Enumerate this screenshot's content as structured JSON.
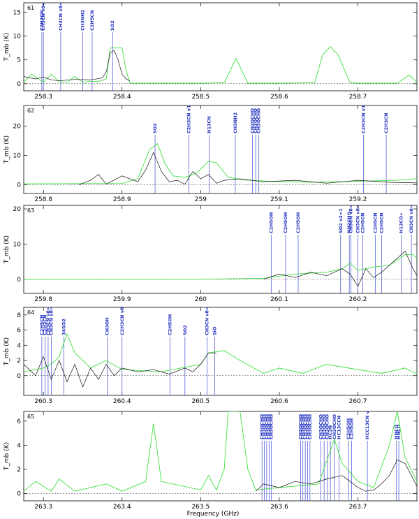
{
  "figure": {
    "xlabel": "Frequency (GHz)",
    "ylabel": "T_mb (K)"
  },
  "chart_data": [
    {
      "type": "line",
      "panel": "61",
      "xlim": [
        258.275,
        258.775
      ],
      "ylim": [
        -1.5,
        17
      ],
      "xticks": [
        258.3,
        258.4,
        258.5,
        258.6,
        258.7
      ],
      "yticks": [
        0,
        5,
        10,
        15
      ],
      "observed": {
        "x": [
          258.275,
          258.29,
          258.3,
          258.31,
          258.32,
          258.34,
          258.36,
          258.375,
          258.38,
          258.385,
          258.39,
          258.395,
          258.4,
          258.405,
          258.41
        ],
        "y": [
          1.5,
          1.0,
          1.4,
          0.8,
          0.6,
          0.9,
          0.8,
          1.2,
          2.5,
          6.5,
          7.0,
          5.0,
          2.0,
          1.0,
          0.6
        ]
      },
      "model": {
        "x": [
          258.275,
          258.285,
          258.3,
          258.31,
          258.32,
          258.33,
          258.34,
          258.35,
          258.36,
          258.37,
          258.38,
          258.385,
          258.4,
          258.405,
          258.41,
          258.5,
          258.53,
          258.545,
          258.56,
          258.6,
          258.645,
          258.655,
          258.665,
          258.675,
          258.69,
          258.7,
          258.75,
          258.765,
          258.775
        ],
        "y": [
          0.3,
          2.0,
          0.3,
          2.0,
          0.4,
          0.3,
          1.5,
          0.3,
          0.5,
          0.5,
          1.0,
          7.5,
          7.5,
          3.0,
          0.1,
          0.1,
          0.2,
          5.3,
          0.1,
          0.1,
          0.2,
          6.0,
          7.8,
          6.0,
          0.2,
          0.1,
          0.1,
          1.8,
          0.3
        ]
      },
      "lines": [
        {
          "freq": 258.298,
          "label": "C2H3CN"
        },
        {
          "freq": 258.3,
          "label": "CH3CN v8=1"
        },
        {
          "freq": 258.322,
          "label": "CH3CN v8=1"
        },
        {
          "freq": 258.35,
          "label": "CH3NH2"
        },
        {
          "freq": 258.362,
          "label": "C2H5CN"
        },
        {
          "freq": 258.388,
          "label": "SO2"
        }
      ]
    },
    {
      "type": "line",
      "panel": "62",
      "xlim": [
        258.775,
        259.275
      ],
      "ylim": [
        -3,
        27
      ],
      "xticks": [
        258.8,
        258.9,
        259,
        259.1,
        259.2
      ],
      "yticks": [
        0,
        10,
        20
      ],
      "observed": {
        "x": [
          258.845,
          258.86,
          258.87,
          258.88,
          258.9,
          258.92,
          258.93,
          258.94,
          258.95,
          258.96,
          258.97,
          258.98,
          258.99,
          259.0,
          259.01,
          259.02,
          259.03,
          259.05,
          259.08,
          259.12,
          259.16,
          259.2,
          259.24,
          259.275
        ],
        "y": [
          0.0,
          1.5,
          3.5,
          0.2,
          3.0,
          1.0,
          5.0,
          11.0,
          4.5,
          1.0,
          1.5,
          0.2,
          4.5,
          2.0,
          3.5,
          0.5,
          1.5,
          2.0,
          1.0,
          1.5,
          0.5,
          1.5,
          0.8,
          0.6
        ]
      },
      "model": {
        "x": [
          258.775,
          258.9,
          258.92,
          258.935,
          258.945,
          258.955,
          258.965,
          258.98,
          258.995,
          259.01,
          259.02,
          259.035,
          259.06,
          259.1,
          259.15,
          259.2,
          259.25,
          259.275
        ],
        "y": [
          0.3,
          0.4,
          2.0,
          12.0,
          14.0,
          7.0,
          3.0,
          2.5,
          4.0,
          8.0,
          7.5,
          2.5,
          1.5,
          1.0,
          0.8,
          1.2,
          1.5,
          2.0
        ]
      },
      "lines": [
        {
          "freq": 258.942,
          "label": "SO2"
        },
        {
          "freq": 258.985,
          "label": "C2H3CN v11=1"
        },
        {
          "freq": 259.011,
          "label": "H13CN"
        },
        {
          "freq": 259.044,
          "label": "CH3NH2"
        },
        {
          "freq": 259.066,
          "label": "CH3OCHO"
        },
        {
          "freq": 259.07,
          "label": "CH3OCHO"
        },
        {
          "freq": 259.074,
          "label": "CH3OCHO"
        },
        {
          "freq": 259.207,
          "label": "C2H3CN v11=1"
        },
        {
          "freq": 259.236,
          "label": "C2H3CN"
        }
      ]
    },
    {
      "type": "line",
      "panel": "63",
      "xlim": [
        259.775,
        260.275
      ],
      "ylim": [
        -4,
        21
      ],
      "xticks": [
        259.8,
        259.9,
        260,
        260.1,
        260.2
      ],
      "yticks": [
        0,
        10,
        20
      ],
      "observed": {
        "x": [
          260.08,
          260.1,
          260.12,
          260.14,
          260.16,
          260.18,
          260.19,
          260.2,
          260.21,
          260.22,
          260.23,
          260.24,
          260.25,
          260.26,
          260.27,
          260.275
        ],
        "y": [
          0.0,
          1.5,
          0.5,
          2.0,
          1.0,
          3.0,
          1.5,
          -2.0,
          3.0,
          0.5,
          2.0,
          4.0,
          6.0,
          8.0,
          3.0,
          1.0
        ]
      },
      "model": {
        "x": [
          259.775,
          260.0,
          260.08,
          260.12,
          260.16,
          260.18,
          260.19,
          260.2,
          260.22,
          260.24,
          260.25,
          260.26,
          260.27,
          260.275
        ],
        "y": [
          0.0,
          0.0,
          0.3,
          1.5,
          2.0,
          3.0,
          4.5,
          2.5,
          3.5,
          4.0,
          5.5,
          7.0,
          7.0,
          6.0
        ]
      },
      "lines": [
        {
          "freq": 260.09,
          "label": "C2H5OH"
        },
        {
          "freq": 260.108,
          "label": "C2H5OH"
        },
        {
          "freq": 260.124,
          "label": "C2H5OH"
        },
        {
          "freq": 260.178,
          "label": "SO2 v2=1"
        },
        {
          "freq": 260.189,
          "label": "NH2CHO"
        },
        {
          "freq": 260.191,
          "label": "CH3CN v8=1"
        },
        {
          "freq": 260.2,
          "label": "CH3CN v8=1"
        },
        {
          "freq": 260.206,
          "label": "C2H5CN"
        },
        {
          "freq": 260.222,
          "label": "C2H5CN"
        },
        {
          "freq": 260.23,
          "label": "C2H5CN"
        },
        {
          "freq": 260.255,
          "label": "H13CO+"
        },
        {
          "freq": 260.268,
          "label": "CH3CN v8=1"
        }
      ]
    },
    {
      "type": "line",
      "panel": "64",
      "xlim": [
        260.275,
        260.775
      ],
      "ylim": [
        -2.6,
        9
      ],
      "xticks": [
        260.3,
        260.4,
        260.5,
        260.6,
        260.7
      ],
      "yticks": [
        0,
        2,
        4,
        6,
        8
      ],
      "observed": {
        "x": [
          260.275,
          260.29,
          260.3,
          260.31,
          260.32,
          260.33,
          260.34,
          260.35,
          260.36,
          260.37,
          260.38,
          260.39,
          260.4,
          260.42,
          260.44,
          260.46,
          260.48,
          260.49,
          260.5,
          260.51,
          260.52
        ],
        "y": [
          1.5,
          0.0,
          2.5,
          -0.5,
          2.0,
          -0.8,
          1.5,
          -1.5,
          1.0,
          -0.5,
          1.5,
          0.0,
          1.0,
          0.5,
          0.8,
          0.2,
          1.0,
          0.5,
          1.5,
          3.0,
          3.0
        ]
      },
      "model": {
        "x": [
          260.275,
          260.3,
          260.31,
          260.32,
          260.33,
          260.34,
          260.36,
          260.38,
          260.4,
          260.45,
          260.5,
          260.51,
          260.53,
          260.55,
          260.58,
          260.6,
          260.63,
          260.66,
          260.7,
          260.73,
          260.76,
          260.775
        ],
        "y": [
          0.5,
          1.0,
          1.5,
          2.5,
          5.5,
          3.0,
          1.0,
          2.0,
          0.8,
          0.5,
          1.5,
          3.0,
          3.3,
          2.0,
          0.3,
          1.0,
          0.3,
          1.5,
          0.8,
          0.3,
          1.0,
          0.2
        ]
      },
      "lines": [
        {
          "freq": 260.298,
          "label": "C2H5CN"
        },
        {
          "freq": 260.302,
          "label": "C2H3CN"
        },
        {
          "freq": 260.306,
          "label": "CH3CN v8=1"
        },
        {
          "freq": 260.31,
          "label": "CH3CN v8=1"
        },
        {
          "freq": 260.326,
          "label": "34SO2"
        },
        {
          "freq": 260.381,
          "label": "CH3OH"
        },
        {
          "freq": 260.4,
          "label": "C2H3CN v8=1"
        },
        {
          "freq": 260.461,
          "label": "C2H5OH"
        },
        {
          "freq": 260.48,
          "label": "SO2"
        },
        {
          "freq": 260.508,
          "label": "CH3CN v8=1"
        },
        {
          "freq": 260.518,
          "label": "SiO"
        }
      ]
    },
    {
      "type": "line",
      "panel": "65",
      "xlim": [
        263.275,
        263.775
      ],
      "ylim": [
        -0.6,
        6.8
      ],
      "xticks": [
        263.3,
        263.4,
        263.5,
        263.6,
        263.7
      ],
      "yticks": [
        0,
        2,
        4,
        6
      ],
      "observed": {
        "x": [
          263.57,
          263.58,
          263.6,
          263.62,
          263.64,
          263.66,
          263.68,
          263.69,
          263.7,
          263.71,
          263.72,
          263.73,
          263.74,
          263.75,
          263.76,
          263.775
        ],
        "y": [
          0.2,
          0.8,
          0.5,
          1.0,
          0.8,
          1.2,
          1.5,
          1.0,
          0.5,
          0.2,
          0.3,
          0.8,
          1.5,
          2.8,
          2.5,
          0.6
        ]
      },
      "model": {
        "x": [
          263.275,
          263.29,
          263.31,
          263.32,
          263.34,
          263.38,
          263.4,
          263.43,
          263.44,
          263.45,
          263.5,
          263.51,
          263.52,
          263.53,
          263.535,
          263.55,
          263.56,
          263.57,
          263.6,
          263.65,
          263.67,
          263.68,
          263.7,
          263.72,
          263.74,
          263.75,
          263.76,
          263.775
        ],
        "y": [
          0.2,
          1.0,
          0.2,
          1.2,
          0.2,
          0.8,
          0.2,
          1.0,
          5.8,
          1.0,
          0.3,
          1.5,
          0.3,
          2.0,
          6.8,
          6.8,
          2.0,
          0.3,
          0.5,
          0.8,
          4.5,
          2.5,
          1.0,
          0.5,
          4.0,
          6.8,
          3.0,
          1.0
        ]
      },
      "lines": [
        {
          "freq": 263.578,
          "label": "CH3OCHO"
        },
        {
          "freq": 263.581,
          "label": "CH3OCHO"
        },
        {
          "freq": 263.584,
          "label": "CH3OCHO"
        },
        {
          "freq": 263.587,
          "label": "CH3OCHO"
        },
        {
          "freq": 263.59,
          "label": "CH3OCHO"
        },
        {
          "freq": 263.627,
          "label": "CH3OCHO"
        },
        {
          "freq": 263.63,
          "label": "CH3OCHO"
        },
        {
          "freq": 263.633,
          "label": "CH3OCHO"
        },
        {
          "freq": 263.636,
          "label": "CH3OCHO"
        },
        {
          "freq": 263.639,
          "label": "CH3OCHO"
        },
        {
          "freq": 263.653,
          "label": "CH3OCHO"
        },
        {
          "freq": 263.657,
          "label": "CH3OCHO"
        },
        {
          "freq": 263.661,
          "label": "CH3OCHO"
        },
        {
          "freq": 263.665,
          "label": "HC3N"
        },
        {
          "freq": 263.67,
          "label": "CH3OCHO"
        },
        {
          "freq": 263.676,
          "label": "HC13CCN"
        },
        {
          "freq": 263.688,
          "label": "C2H5OH"
        },
        {
          "freq": 263.692,
          "label": "C2H5OH"
        },
        {
          "freq": 263.712,
          "label": "HCC13CN v7=1"
        },
        {
          "freq": 263.749,
          "label": "HNCO"
        },
        {
          "freq": 263.752,
          "label": "HNCO"
        }
      ]
    }
  ]
}
